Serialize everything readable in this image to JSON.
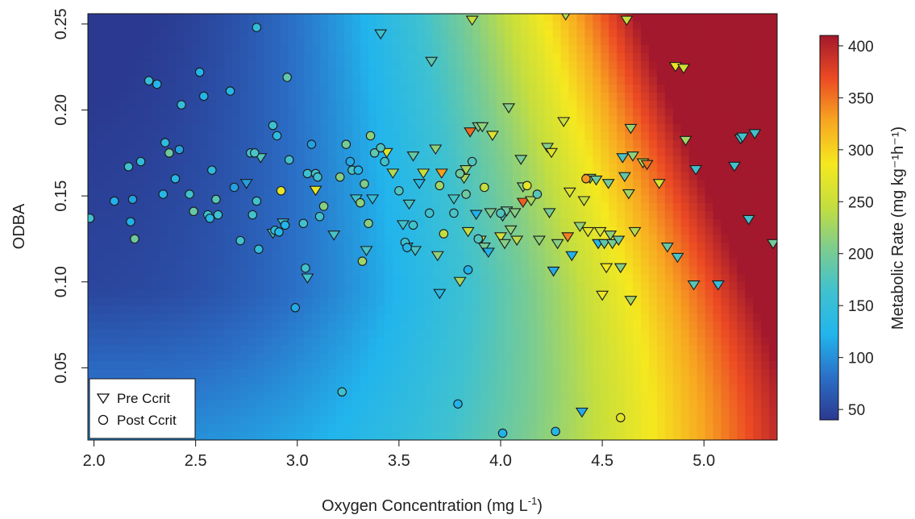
{
  "chart_data": {
    "type": "scatter",
    "xlabel": "Oxygen Concentration (mg L",
    "xlabel_sup": "-1",
    "xlabel_end": ")",
    "ylabel": "ODBA",
    "colorbar_label": "Metabolic Rate (mg kg⁻¹h⁻¹)",
    "xlim": [
      1.97,
      5.36
    ],
    "ylim": [
      0.008,
      0.256
    ],
    "xticks": [
      2.0,
      2.5,
      3.0,
      3.5,
      4.0,
      4.5,
      5.0
    ],
    "xtick_labels": [
      "2.0",
      "2.5",
      "3.0",
      "3.5",
      "4.0",
      "4.5",
      "5.0"
    ],
    "yticks": [
      0.05,
      0.1,
      0.15,
      0.2,
      0.25
    ],
    "ytick_labels": [
      "0.05",
      "0.10",
      "0.15",
      "0.20",
      "0.25"
    ],
    "colorbar_range": [
      40,
      410
    ],
    "colorbar_ticks": [
      50,
      100,
      150,
      200,
      250,
      300,
      350,
      400
    ],
    "colorbar_tick_labels": [
      "50",
      "100",
      "150",
      "200",
      "250",
      "300",
      "350",
      "400"
    ],
    "colormap": [
      "#2b3990",
      "#2b6fc7",
      "#22b5ec",
      "#3fc1d0",
      "#7ccc8f",
      "#c5de3e",
      "#f5e81f",
      "#f7a621",
      "#ec4a23",
      "#a3182c"
    ],
    "background": "metabolic-rate-surface",
    "legend": {
      "position": "bottom-left",
      "entries": [
        "Pre Ccrit",
        "Post Ccrit"
      ]
    },
    "series": [
      {
        "name": "Pre Ccrit",
        "marker": "triangle-down",
        "points": [
          [
            2.75,
            0.157,
            110
          ],
          [
            2.82,
            0.172,
            175
          ],
          [
            2.88,
            0.128,
            170
          ],
          [
            2.93,
            0.134,
            160
          ],
          [
            3.05,
            0.102,
            165
          ],
          [
            3.09,
            0.153,
            275
          ],
          [
            3.18,
            0.127,
            170
          ],
          [
            3.29,
            0.148,
            165
          ],
          [
            3.34,
            0.118,
            170
          ],
          [
            3.37,
            0.148,
            150
          ],
          [
            3.41,
            0.244,
            165
          ],
          [
            3.44,
            0.175,
            265
          ],
          [
            3.47,
            0.163,
            235
          ],
          [
            3.52,
            0.133,
            165
          ],
          [
            3.54,
            0.12,
            170
          ],
          [
            3.55,
            0.145,
            170
          ],
          [
            3.57,
            0.173,
            190
          ],
          [
            3.58,
            0.118,
            170
          ],
          [
            3.6,
            0.157,
            130
          ],
          [
            3.62,
            0.163,
            250
          ],
          [
            3.66,
            0.228,
            185
          ],
          [
            3.68,
            0.177,
            215
          ],
          [
            3.69,
            0.115,
            215
          ],
          [
            3.7,
            0.093,
            135
          ],
          [
            3.71,
            0.163,
            330
          ],
          [
            3.77,
            0.148,
            170
          ],
          [
            3.8,
            0.1,
            230
          ],
          [
            3.82,
            0.16,
            230
          ],
          [
            3.83,
            0.165,
            230
          ],
          [
            3.84,
            0.129,
            245
          ],
          [
            3.85,
            0.187,
            355
          ],
          [
            3.86,
            0.252,
            245
          ],
          [
            3.88,
            0.139,
            120
          ],
          [
            3.89,
            0.19,
            205
          ],
          [
            3.9,
            0.124,
            245
          ],
          [
            3.91,
            0.19,
            215
          ],
          [
            3.92,
            0.12,
            200
          ],
          [
            3.94,
            0.117,
            120
          ],
          [
            3.95,
            0.14,
            205
          ],
          [
            3.96,
            0.185,
            265
          ],
          [
            4.0,
            0.126,
            255
          ],
          [
            4.01,
            0.138,
            165
          ],
          [
            4.02,
            0.122,
            210
          ],
          [
            4.03,
            0.141,
            195
          ],
          [
            4.04,
            0.201,
            210
          ],
          [
            4.05,
            0.13,
            215
          ],
          [
            4.07,
            0.14,
            210
          ],
          [
            4.08,
            0.124,
            240
          ],
          [
            4.1,
            0.171,
            200
          ],
          [
            4.11,
            0.155,
            210
          ],
          [
            4.11,
            0.146,
            360
          ],
          [
            4.15,
            0.147,
            230
          ],
          [
            4.19,
            0.124,
            215
          ],
          [
            4.23,
            0.178,
            210
          ],
          [
            4.24,
            0.14,
            200
          ],
          [
            4.25,
            0.175,
            265
          ],
          [
            4.26,
            0.106,
            115
          ],
          [
            4.28,
            0.122,
            210
          ],
          [
            4.31,
            0.193,
            250
          ],
          [
            4.32,
            0.255,
            235
          ],
          [
            4.33,
            0.126,
            345
          ],
          [
            4.34,
            0.152,
            265
          ],
          [
            4.35,
            0.115,
            120
          ],
          [
            4.39,
            0.132,
            215
          ],
          [
            4.4,
            0.024,
            115
          ],
          [
            4.41,
            0.147,
            245
          ],
          [
            4.43,
            0.129,
            270
          ],
          [
            4.44,
            0.16,
            200
          ],
          [
            4.47,
            0.159,
            195
          ],
          [
            4.48,
            0.122,
            130
          ],
          [
            4.49,
            0.129,
            260
          ],
          [
            4.5,
            0.092,
            280
          ],
          [
            4.51,
            0.122,
            185
          ],
          [
            4.52,
            0.108,
            285
          ],
          [
            4.53,
            0.157,
            200
          ],
          [
            4.54,
            0.127,
            215
          ],
          [
            4.55,
            0.122,
            200
          ],
          [
            4.58,
            0.124,
            190
          ],
          [
            4.59,
            0.108,
            210
          ],
          [
            4.6,
            0.172,
            170
          ],
          [
            4.61,
            0.161,
            185
          ],
          [
            4.62,
            0.252,
            245
          ],
          [
            4.63,
            0.151,
            225
          ],
          [
            4.64,
            0.089,
            225
          ],
          [
            4.64,
            0.189,
            220
          ],
          [
            4.65,
            0.173,
            215
          ],
          [
            4.66,
            0.129,
            235
          ],
          [
            4.7,
            0.169,
            235
          ],
          [
            4.72,
            0.168,
            350
          ],
          [
            4.78,
            0.157,
            260
          ],
          [
            4.82,
            0.12,
            190
          ],
          [
            4.86,
            0.225,
            275
          ],
          [
            4.87,
            0.114,
            170
          ],
          [
            4.9,
            0.224,
            255
          ],
          [
            4.91,
            0.182,
            225
          ],
          [
            4.95,
            0.098,
            180
          ],
          [
            4.96,
            0.165,
            165
          ],
          [
            5.07,
            0.098,
            150
          ],
          [
            5.15,
            0.167,
            165
          ],
          [
            5.18,
            0.183,
            165
          ],
          [
            5.19,
            0.184,
            165
          ],
          [
            5.22,
            0.136,
            165
          ],
          [
            5.25,
            0.186,
            165
          ],
          [
            5.34,
            0.122,
            200
          ]
        ]
      },
      {
        "name": "Post Ccrit",
        "marker": "circle",
        "points": [
          [
            1.98,
            0.137,
            165
          ],
          [
            2.1,
            0.147,
            120
          ],
          [
            2.17,
            0.167,
            160
          ],
          [
            2.18,
            0.135,
            120
          ],
          [
            2.19,
            0.148,
            110
          ],
          [
            2.2,
            0.125,
            195
          ],
          [
            2.23,
            0.17,
            145
          ],
          [
            2.27,
            0.217,
            150
          ],
          [
            2.31,
            0.215,
            125
          ],
          [
            2.34,
            0.151,
            130
          ],
          [
            2.35,
            0.181,
            140
          ],
          [
            2.37,
            0.175,
            195
          ],
          [
            2.4,
            0.16,
            130
          ],
          [
            2.42,
            0.177,
            110
          ],
          [
            2.43,
            0.203,
            150
          ],
          [
            2.47,
            0.151,
            165
          ],
          [
            2.49,
            0.141,
            190
          ],
          [
            2.52,
            0.222,
            125
          ],
          [
            2.54,
            0.208,
            125
          ],
          [
            2.56,
            0.139,
            160
          ],
          [
            2.57,
            0.137,
            130
          ],
          [
            2.58,
            0.165,
            140
          ],
          [
            2.6,
            0.148,
            180
          ],
          [
            2.61,
            0.139,
            160
          ],
          [
            2.67,
            0.211,
            130
          ],
          [
            2.69,
            0.155,
            110
          ],
          [
            2.72,
            0.124,
            165
          ],
          [
            2.77,
            0.175,
            165
          ],
          [
            2.78,
            0.139,
            165
          ],
          [
            2.79,
            0.175,
            170
          ],
          [
            2.8,
            0.147,
            165
          ],
          [
            2.8,
            0.248,
            145
          ],
          [
            2.81,
            0.119,
            145
          ],
          [
            2.88,
            0.191,
            160
          ],
          [
            2.89,
            0.13,
            140
          ],
          [
            2.9,
            0.185,
            140
          ],
          [
            2.91,
            0.129,
            130
          ],
          [
            2.92,
            0.153,
            275
          ],
          [
            2.94,
            0.133,
            125
          ],
          [
            2.95,
            0.219,
            185
          ],
          [
            2.96,
            0.171,
            165
          ],
          [
            2.99,
            0.085,
            115
          ],
          [
            3.03,
            0.134,
            165
          ],
          [
            3.04,
            0.108,
            165
          ],
          [
            3.05,
            0.163,
            160
          ],
          [
            3.07,
            0.18,
            110
          ],
          [
            3.09,
            0.163,
            165
          ],
          [
            3.1,
            0.161,
            165
          ],
          [
            3.11,
            0.138,
            165
          ],
          [
            3.13,
            0.144,
            210
          ],
          [
            3.21,
            0.161,
            210
          ],
          [
            3.24,
            0.18,
            200
          ],
          [
            3.26,
            0.17,
            115
          ],
          [
            3.27,
            0.165,
            170
          ],
          [
            3.3,
            0.165,
            130
          ],
          [
            3.31,
            0.146,
            215
          ],
          [
            3.32,
            0.112,
            225
          ],
          [
            3.33,
            0.157,
            205
          ],
          [
            3.35,
            0.134,
            210
          ],
          [
            3.36,
            0.185,
            215
          ],
          [
            3.38,
            0.175,
            185
          ],
          [
            3.41,
            0.178,
            175
          ],
          [
            3.43,
            0.17,
            165
          ],
          [
            3.5,
            0.153,
            175
          ],
          [
            3.53,
            0.123,
            160
          ],
          [
            3.54,
            0.12,
            130
          ],
          [
            3.57,
            0.133,
            165
          ],
          [
            3.65,
            0.14,
            165
          ],
          [
            3.7,
            0.156,
            225
          ],
          [
            3.72,
            0.128,
            245
          ],
          [
            3.77,
            0.14,
            170
          ],
          [
            3.8,
            0.163,
            195
          ],
          [
            3.83,
            0.151,
            195
          ],
          [
            3.84,
            0.107,
            120
          ],
          [
            3.86,
            0.17,
            175
          ],
          [
            3.89,
            0.125,
            175
          ],
          [
            3.92,
            0.155,
            245
          ],
          [
            4.0,
            0.14,
            175
          ],
          [
            4.13,
            0.156,
            275
          ],
          [
            4.18,
            0.151,
            180
          ],
          [
            4.42,
            0.16,
            335
          ],
          [
            4.59,
            0.021,
            270
          ],
          [
            3.22,
            0.036,
            165
          ],
          [
            3.79,
            0.029,
            120
          ],
          [
            4.01,
            0.012,
            120
          ],
          [
            4.27,
            0.013,
            130
          ]
        ]
      }
    ]
  }
}
